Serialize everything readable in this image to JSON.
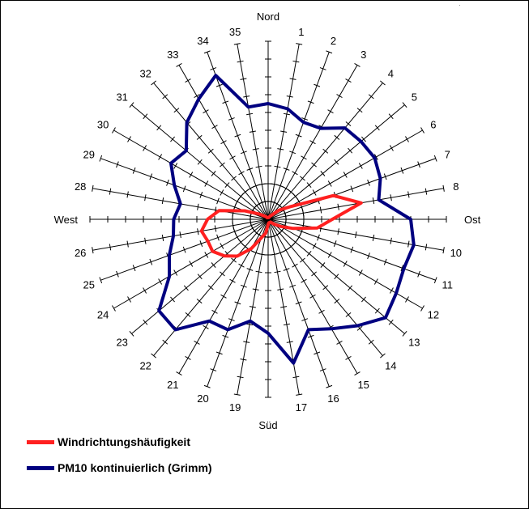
{
  "chart_data": {
    "type": "radar",
    "radial_axis": {
      "min": 0,
      "max": 10,
      "ticks_per_spoke": 10,
      "grid_rings": [
        1,
        2
      ]
    },
    "direction_labels": {
      "north": "Nord",
      "east": "Ost",
      "south": "Süd",
      "west": "West"
    },
    "spoke_labels": [
      "",
      "1",
      "2",
      "3",
      "4",
      "5",
      "6",
      "7",
      "8",
      "",
      "10",
      "11",
      "12",
      "13",
      "14",
      "15",
      "16",
      "17",
      "",
      "19",
      "20",
      "21",
      "22",
      "23",
      "24",
      "25",
      "26",
      "",
      "28",
      "29",
      "30",
      "31",
      "32",
      "33",
      "34",
      "35"
    ],
    "series": [
      {
        "name": "Windrichtungshäufigkeit",
        "color": "#ff2020",
        "values": [
          0.1,
          0.1,
          0.1,
          0.2,
          0.3,
          0.8,
          1.4,
          3.9,
          5.3,
          3.6,
          2.8,
          1.5,
          0.8,
          0.4,
          0.2,
          0.2,
          0.2,
          0.2,
          0.3,
          0.8,
          1.1,
          1.9,
          2.7,
          3.2,
          3.6,
          3.6,
          3.8,
          3.4,
          2.8,
          1.4,
          0.6,
          0.3,
          0.2,
          0.1,
          0.1,
          0.1
        ]
      },
      {
        "name": "PM10 kontinuierlich (Grimm)",
        "color": "#000080",
        "values": [
          6.5,
          6.3,
          5.8,
          5.9,
          6.7,
          6.8,
          6.9,
          6.7,
          6.3,
          8.0,
          8.3,
          8.1,
          8.3,
          8.6,
          7.8,
          7.1,
          6.6,
          8.2,
          6.4,
          5.8,
          6.6,
          6.6,
          8.1,
          8.0,
          6.4,
          5.9,
          5.4,
          5.3,
          5.0,
          5.6,
          6.3,
          6.0,
          7.1,
          7.8,
          8.6,
          6.4
        ]
      }
    ],
    "legend_position": "bottom-left"
  }
}
